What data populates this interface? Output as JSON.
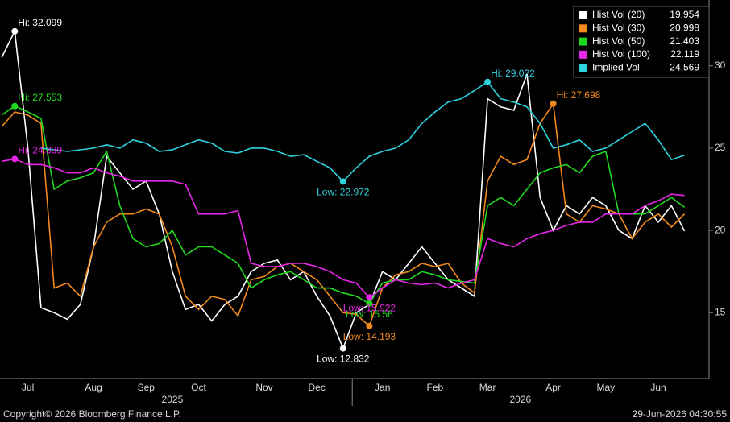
{
  "chart_data": {
    "type": "line",
    "categories": [
      null,
      null,
      "Jul",
      null,
      null,
      null,
      null,
      "Aug",
      null,
      null,
      null,
      "Sep",
      null,
      null,
      null,
      "Oct",
      null,
      null,
      null,
      null,
      "Nov",
      null,
      null,
      null,
      "Dec",
      null,
      null,
      null,
      null,
      "Jan",
      null,
      null,
      null,
      "Feb",
      null,
      null,
      null,
      "Mar",
      null,
      null,
      null,
      null,
      "Apr",
      null,
      null,
      null,
      "May",
      null,
      null,
      null,
      "Jun",
      null,
      null
    ],
    "x_groups": [
      {
        "label": "2025",
        "from": "Jul",
        "to": "Dec"
      },
      {
        "label": "2026",
        "from": "Jan",
        "to": "Jun"
      }
    ],
    "ylim": [
      11,
      34
    ],
    "yticks": [
      15,
      20,
      25,
      30
    ],
    "grid": false,
    "series": [
      {
        "name": "Hist Vol (20)",
        "color": "#ffffff",
        "values": [
          30.5,
          32.099,
          25,
          15.3,
          15,
          14.6,
          15.5,
          19,
          24.5,
          23.5,
          22.5,
          23,
          21,
          17.5,
          15.2,
          15.5,
          14.5,
          15.5,
          16,
          17.5,
          18,
          18.2,
          17,
          17.5,
          16,
          14.8,
          12.832,
          15,
          15.5,
          17.5,
          17,
          18,
          19,
          18,
          17,
          16.5,
          16,
          28,
          27.5,
          27.3,
          29.5,
          22,
          20,
          21.5,
          21,
          22,
          21.5,
          20,
          19.5,
          21.5,
          20.5,
          21.5,
          19.954
        ],
        "annotations": [
          {
            "label": "Hi: 32.099",
            "value": 32.099
          },
          {
            "label": "Low: 12.832",
            "value": 12.832
          }
        ]
      },
      {
        "name": "Hist Vol (30)",
        "color": "#f28a1e",
        "values": [
          26.3,
          27.2,
          27,
          26.5,
          16.5,
          16.8,
          16,
          19,
          20.5,
          21,
          21,
          21.3,
          21,
          19,
          16,
          15.2,
          16,
          15.8,
          14.8,
          17,
          17.2,
          17.8,
          18,
          17.5,
          17,
          16,
          15,
          14.9,
          14.193,
          16.5,
          17.3,
          17.5,
          18,
          17.8,
          18,
          16.8,
          16.2,
          23,
          24.5,
          24,
          24.3,
          26.5,
          27.698,
          21,
          20.5,
          21.5,
          21.3,
          21,
          19.5,
          20.5,
          21,
          20.2,
          20.998
        ],
        "annotations": [
          {
            "label": "Hi: 27.698",
            "value": 27.698
          },
          {
            "label": "Low: 14.193",
            "value": 14.193
          }
        ]
      },
      {
        "name": "Hist Vol (50)",
        "color": "#22d81f",
        "values": [
          27,
          27.553,
          27.2,
          26.8,
          22.5,
          23,
          23.2,
          23.5,
          24.8,
          21.5,
          19.5,
          19,
          19.2,
          20,
          18.5,
          19,
          19,
          18.5,
          18,
          16.5,
          17,
          17.3,
          17.5,
          17,
          16.5,
          16.5,
          16.2,
          16,
          15.56,
          16.8,
          17,
          17,
          17.5,
          17.3,
          17,
          16.9,
          16.8,
          21.5,
          22,
          21.5,
          22.5,
          23.5,
          23.8,
          24,
          23.5,
          24.5,
          24.8,
          21,
          21,
          21,
          21.5,
          22,
          21.403
        ],
        "annotations": [
          {
            "label": "Hi: 27.553",
            "value": 27.553
          },
          {
            "label": "Low: 15.56",
            "value": 15.56
          }
        ]
      },
      {
        "name": "Hist Vol (100)",
        "color": "#e826e8",
        "values": [
          24.2,
          24.339,
          24,
          24,
          23.8,
          23.5,
          23.5,
          23.8,
          23.5,
          23.3,
          23,
          23,
          23,
          23,
          22.8,
          21,
          21,
          21,
          21.2,
          18,
          17.8,
          17.8,
          18,
          18,
          17.8,
          17.5,
          17,
          16.8,
          15.922,
          16.5,
          17,
          16.8,
          16.7,
          16.8,
          16.5,
          16.8,
          17,
          19.5,
          19.2,
          19,
          19.5,
          19.8,
          20,
          20.3,
          20.5,
          20.5,
          21,
          21,
          21,
          21.5,
          21.8,
          22.2,
          22.119
        ],
        "annotations": [
          {
            "label": "Hi: 24.339",
            "value": 24.339
          },
          {
            "label": "Low: 15.922",
            "value": 15.922
          }
        ]
      },
      {
        "name": "Implied Vol",
        "color": "#2fd3e0",
        "values": [
          null,
          null,
          null,
          25,
          24.9,
          24.8,
          24.9,
          25,
          25.2,
          25,
          25.5,
          25.3,
          24.8,
          24.9,
          25.2,
          25.5,
          25.3,
          24.8,
          24.7,
          25,
          25,
          24.8,
          24.5,
          24.6,
          24.2,
          23.8,
          22.972,
          23.8,
          24.5,
          24.8,
          25,
          25.5,
          26.5,
          27.2,
          27.8,
          28,
          28.5,
          29.022,
          28,
          27.8,
          27.5,
          26.5,
          25,
          25.2,
          25.5,
          24.8,
          25,
          25.5,
          26,
          26.5,
          25.5,
          24.3,
          24.569
        ],
        "annotations": [
          {
            "label": "Hi: 29.022",
            "value": 29.022
          },
          {
            "label": "Low: 22.972",
            "value": 22.972
          }
        ]
      }
    ]
  },
  "footer": {
    "copyright": "Copyright© 2026 Bloomberg Finance L.P.",
    "timestamp": "29-Jun-2026 04:30:55"
  }
}
